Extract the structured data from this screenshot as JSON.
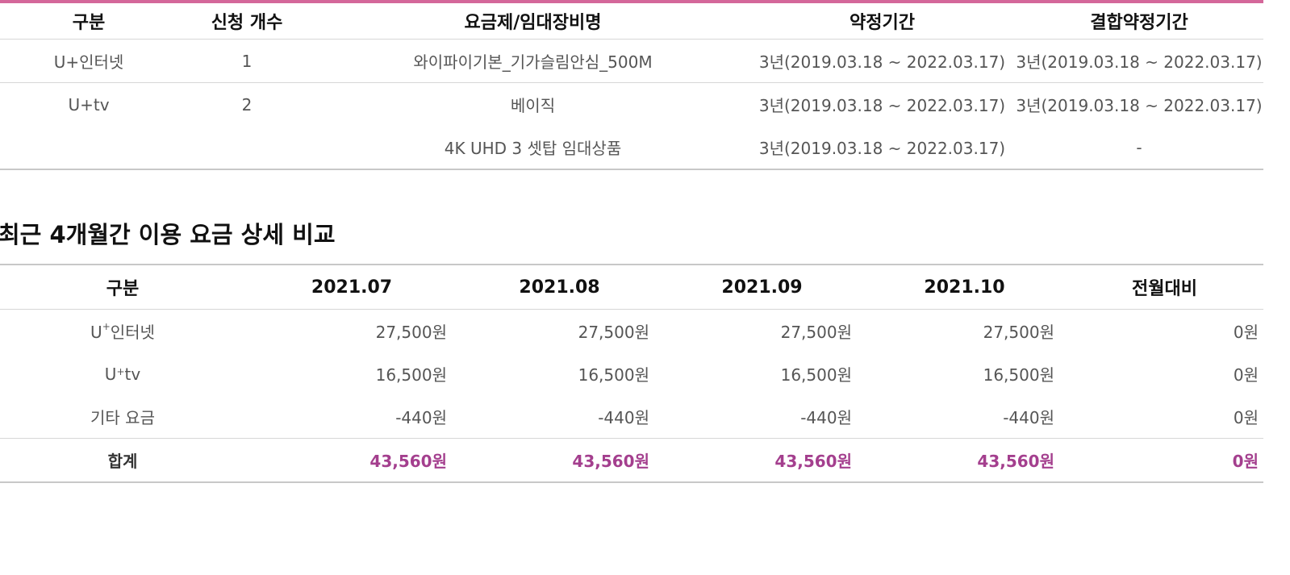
{
  "plan_table": {
    "headers": [
      "구분",
      "신청 개수",
      "요금제/임대장비명",
      "약정기간",
      "결합약정기간"
    ],
    "rows": [
      {
        "category": "U+인터넷",
        "count": "1",
        "plan": "와이파이기본_기가슬림안심_500M",
        "contract": "3년(2019.03.18 ~ 2022.03.17)",
        "bundle_contract": "3년(2019.03.18 ~ 2022.03.17)"
      },
      {
        "category": "U+tv",
        "count": "2",
        "plan": "베이직",
        "contract": "3년(2019.03.18 ~ 2022.03.17)",
        "bundle_contract": "3년(2019.03.18 ~ 2022.03.17)"
      },
      {
        "category": "",
        "count": "",
        "plan": "4K UHD 3 셋탑 임대상품",
        "contract": "3년(2019.03.18 ~ 2022.03.17)",
        "bundle_contract": "-"
      }
    ]
  },
  "section_title": "최근 4개월간 이용 요금 상세 비교",
  "compare_table": {
    "headers": [
      "구분",
      "2021.07",
      "2021.08",
      "2021.09",
      "2021.10",
      "전월대비"
    ],
    "rows": [
      {
        "label_main": "U",
        "label_sup": "+",
        "label_rest": "인터넷",
        "values": [
          "27,500원",
          "27,500원",
          "27,500원",
          "27,500원"
        ],
        "diff": "0원"
      },
      {
        "label_main": "U",
        "label_sup": "+",
        "label_rest": "tv",
        "values": [
          "16,500원",
          "16,500원",
          "16,500원",
          "16,500원"
        ],
        "diff": "0원"
      },
      {
        "label": "기타 요금",
        "values": [
          "-440원",
          "-440원",
          "-440원",
          "-440원"
        ],
        "diff": "0원"
      }
    ],
    "total": {
      "label": "합계",
      "values": [
        "43,560원",
        "43,560원",
        "43,560원",
        "43,560원"
      ],
      "diff": "0원"
    }
  },
  "colors": {
    "accent_bar": "#d4679a",
    "total_text": "#a43f8e"
  }
}
